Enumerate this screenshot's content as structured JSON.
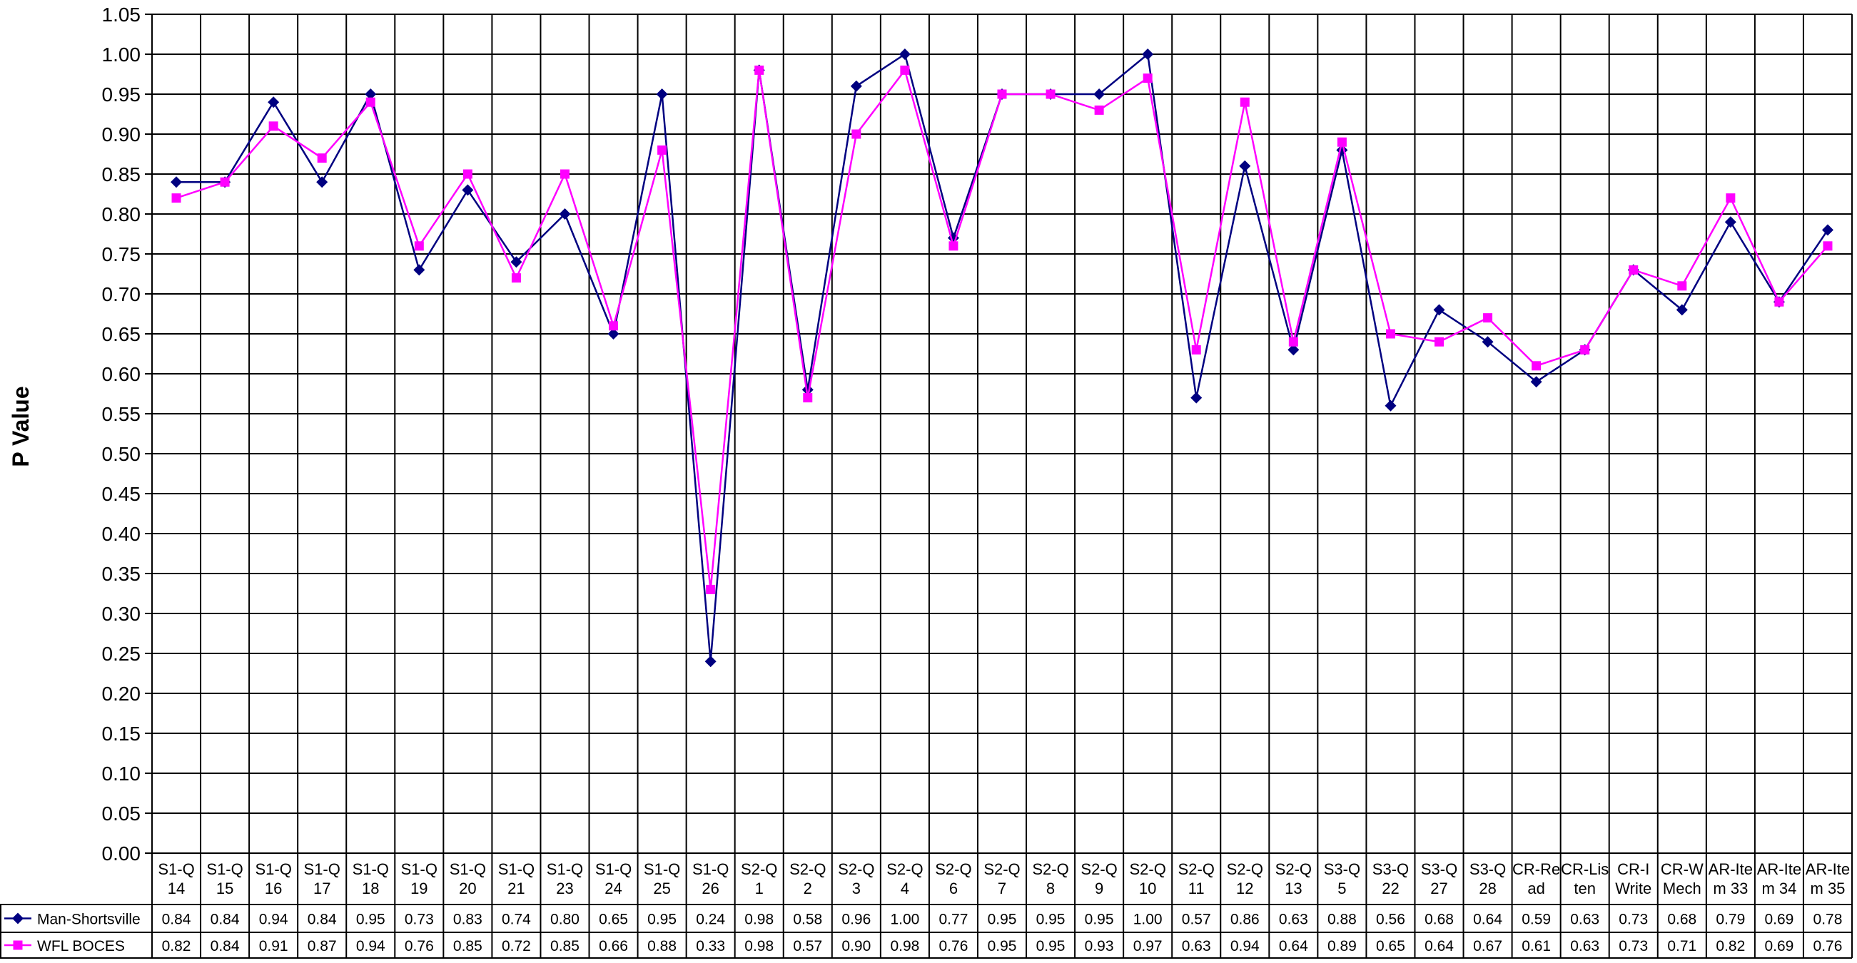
{
  "chart_data": {
    "type": "line",
    "ylabel": "P Value",
    "ylim": [
      0,
      1.05
    ],
    "ytick_step": 0.05,
    "grid": true,
    "legend_placement": "data-table-left",
    "categories": [
      [
        "S1-Q",
        "14"
      ],
      [
        "S1-Q",
        "15"
      ],
      [
        "S1-Q",
        "16"
      ],
      [
        "S1-Q",
        "17"
      ],
      [
        "S1-Q",
        "18"
      ],
      [
        "S1-Q",
        "19"
      ],
      [
        "S1-Q",
        "20"
      ],
      [
        "S1-Q",
        "21"
      ],
      [
        "S1-Q",
        "23"
      ],
      [
        "S1-Q",
        "24"
      ],
      [
        "S1-Q",
        "25"
      ],
      [
        "S1-Q",
        "26"
      ],
      [
        "S2-Q",
        "1"
      ],
      [
        "S2-Q",
        "2"
      ],
      [
        "S2-Q",
        "3"
      ],
      [
        "S2-Q",
        "4"
      ],
      [
        "S2-Q",
        "6"
      ],
      [
        "S2-Q",
        "7"
      ],
      [
        "S2-Q",
        "8"
      ],
      [
        "S2-Q",
        "9"
      ],
      [
        "S2-Q",
        "10"
      ],
      [
        "S2-Q",
        "11"
      ],
      [
        "S2-Q",
        "12"
      ],
      [
        "S2-Q",
        "13"
      ],
      [
        "S3-Q",
        "5"
      ],
      [
        "S3-Q",
        "22"
      ],
      [
        "S3-Q",
        "27"
      ],
      [
        "S3-Q",
        "28"
      ],
      [
        "CR-Re",
        "ad"
      ],
      [
        "CR-Lis",
        "ten"
      ],
      [
        "CR-I",
        "Write"
      ],
      [
        "CR-W",
        "Mech"
      ],
      [
        "AR-Ite",
        "m 33"
      ],
      [
        "AR-Ite",
        "m 34"
      ],
      [
        "AR-Ite",
        "m 35"
      ]
    ],
    "series": [
      {
        "name": "Man-Shortsville",
        "color": "#000080",
        "marker": "diamond",
        "values": [
          0.84,
          0.84,
          0.94,
          0.84,
          0.95,
          0.73,
          0.83,
          0.74,
          0.8,
          0.65,
          0.95,
          0.24,
          0.98,
          0.58,
          0.96,
          1.0,
          0.77,
          0.95,
          0.95,
          0.95,
          1.0,
          0.57,
          0.86,
          0.63,
          0.88,
          0.56,
          0.68,
          0.64,
          0.59,
          0.63,
          0.73,
          0.68,
          0.79,
          0.69,
          0.78
        ],
        "labels": [
          "0.84",
          "0.84",
          "0.94",
          "0.84",
          "0.95",
          "0.73",
          "0.83",
          "0.74",
          "0.80",
          "0.65",
          "0.95",
          "0.24",
          "0.98",
          "0.58",
          "0.96",
          "1.00",
          "0.77",
          "0.95",
          "0.95",
          "0.95",
          "1.00",
          "0.57",
          "0.86",
          "0.63",
          "0.88",
          "0.56",
          "0.68",
          "0.64",
          "0.59",
          "0.63",
          "0.73",
          "0.68",
          "0.79",
          "0.69",
          "0.78"
        ]
      },
      {
        "name": "WFL  BOCES",
        "color": "#FF00FF",
        "marker": "square",
        "values": [
          0.82,
          0.84,
          0.91,
          0.87,
          0.94,
          0.76,
          0.85,
          0.72,
          0.85,
          0.66,
          0.88,
          0.33,
          0.98,
          0.57,
          0.9,
          0.98,
          0.76,
          0.95,
          0.95,
          0.93,
          0.97,
          0.63,
          0.94,
          0.64,
          0.89,
          0.65,
          0.64,
          0.67,
          0.61,
          0.63,
          0.73,
          0.71,
          0.82,
          0.69,
          0.76
        ],
        "labels": [
          "0.82",
          "0.84",
          "0.91",
          "0.87",
          "0.94",
          "0.76",
          "0.85",
          "0.72",
          "0.85",
          "0.66",
          "0.88",
          "0.33",
          "0.98",
          "0.57",
          "0.90",
          "0.98",
          "0.76",
          "0.95",
          "0.95",
          "0.93",
          "0.97",
          "0.63",
          "0.94",
          "0.64",
          "0.89",
          "0.65",
          "0.64",
          "0.67",
          "0.61",
          "0.63",
          "0.73",
          "0.71",
          "0.82",
          "0.69",
          "0.76"
        ]
      }
    ]
  }
}
